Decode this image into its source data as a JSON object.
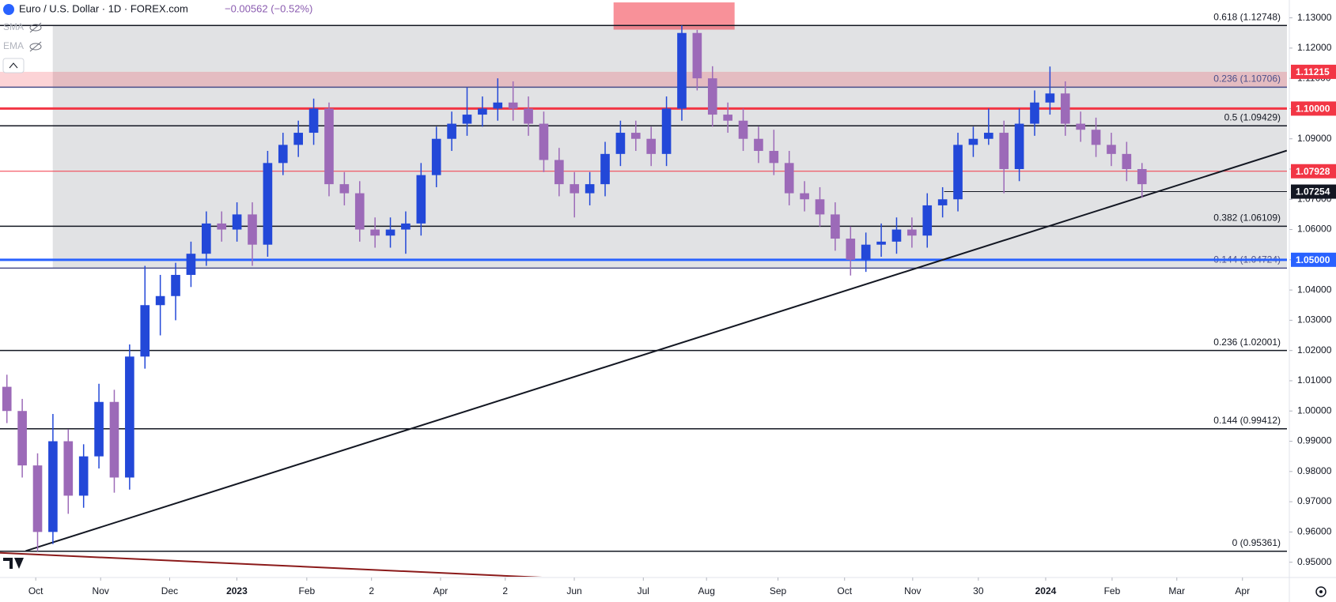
{
  "chart_data": {
    "type": "candlestick",
    "title": "Euro / U.S. Dollar · 1D · FOREX.com",
    "subtitle": "−0.00562 (−0.52%)",
    "indicators": [
      "SMA",
      "EMA"
    ],
    "up_color": "#2348d8",
    "down_color": "#9c6ab8",
    "x": [
      0,
      1,
      2,
      3,
      4,
      5,
      6,
      7,
      8,
      9,
      10,
      11,
      12,
      13,
      14,
      15,
      16,
      17,
      18,
      19,
      20,
      21,
      22,
      23,
      24,
      25,
      26,
      27,
      28,
      29,
      30,
      31,
      32,
      33,
      34,
      35,
      36,
      37,
      38,
      39,
      40,
      41,
      42,
      43,
      44,
      45,
      46,
      47,
      48,
      49,
      50,
      51,
      52,
      53,
      54,
      55,
      56,
      57,
      58,
      59,
      60,
      61,
      62,
      63,
      64,
      65,
      66,
      67,
      68,
      69,
      70,
      71,
      72,
      73,
      74
    ],
    "open": [
      1.008,
      1.0,
      0.982,
      0.96,
      0.99,
      0.972,
      0.985,
      1.003,
      0.978,
      1.018,
      1.035,
      1.038,
      1.045,
      1.052,
      1.062,
      1.06,
      1.065,
      1.055,
      1.082,
      1.088,
      1.092,
      1.1,
      1.075,
      1.072,
      1.06,
      1.058,
      1.06,
      1.062,
      1.078,
      1.09,
      1.095,
      1.098,
      1.1,
      1.102,
      1.1,
      1.095,
      1.083,
      1.075,
      1.072,
      1.075,
      1.085,
      1.092,
      1.09,
      1.085,
      1.1,
      1.125,
      1.11,
      1.098,
      1.096,
      1.09,
      1.086,
      1.082,
      1.072,
      1.07,
      1.065,
      1.057,
      1.05,
      1.055,
      1.056,
      1.06,
      1.058,
      1.068,
      1.07,
      1.088,
      1.09,
      1.092,
      1.08,
      1.095,
      1.102,
      1.105,
      1.095,
      1.093,
      1.088,
      1.085,
      1.08
    ],
    "high": [
      1.012,
      1.004,
      0.986,
      0.999,
      0.994,
      0.989,
      1.009,
      1.007,
      1.022,
      1.048,
      1.045,
      1.049,
      1.056,
      1.066,
      1.066,
      1.069,
      1.069,
      1.086,
      1.092,
      1.096,
      1.1033,
      1.102,
      1.079,
      1.076,
      1.064,
      1.064,
      1.066,
      1.082,
      1.094,
      1.099,
      1.107,
      1.104,
      1.11,
      1.109,
      1.104,
      1.099,
      1.087,
      1.079,
      1.079,
      1.089,
      1.096,
      1.096,
      1.094,
      1.104,
      1.1275,
      1.126,
      1.114,
      1.102,
      1.1,
      1.094,
      1.093,
      1.086,
      1.076,
      1.074,
      1.069,
      1.061,
      1.059,
      1.062,
      1.064,
      1.064,
      1.072,
      1.074,
      1.092,
      1.094,
      1.1,
      1.096,
      1.1,
      1.106,
      1.1139,
      1.109,
      1.099,
      1.097,
      1.092,
      1.089,
      1.082
    ],
    "low": [
      0.996,
      0.978,
      0.9536,
      0.956,
      0.966,
      0.968,
      0.981,
      0.973,
      0.974,
      1.014,
      1.025,
      1.03,
      1.041,
      1.048,
      1.056,
      1.056,
      1.048,
      1.051,
      1.078,
      1.084,
      1.088,
      1.071,
      1.068,
      1.056,
      1.054,
      1.054,
      1.052,
      1.058,
      1.074,
      1.086,
      1.091,
      1.094,
      1.096,
      1.096,
      1.091,
      1.079,
      1.071,
      1.064,
      1.068,
      1.071,
      1.081,
      1.086,
      1.081,
      1.081,
      1.096,
      1.106,
      1.094,
      1.092,
      1.086,
      1.082,
      1.078,
      1.068,
      1.066,
      1.061,
      1.053,
      1.0448,
      1.046,
      1.051,
      1.052,
      1.054,
      1.054,
      1.064,
      1.066,
      1.084,
      1.088,
      1.072,
      1.076,
      1.091,
      1.098,
      1.091,
      1.089,
      1.084,
      1.081,
      1.076,
      1.0705
    ],
    "close": [
      1.0,
      0.982,
      0.96,
      0.99,
      0.972,
      0.985,
      1.003,
      0.978,
      1.018,
      1.035,
      1.038,
      1.045,
      1.052,
      1.062,
      1.06,
      1.065,
      1.055,
      1.082,
      1.088,
      1.092,
      1.1,
      1.075,
      1.072,
      1.06,
      1.058,
      1.06,
      1.062,
      1.078,
      1.09,
      1.095,
      1.098,
      1.1,
      1.102,
      1.1,
      1.095,
      1.083,
      1.075,
      1.072,
      1.075,
      1.085,
      1.092,
      1.09,
      1.085,
      1.1,
      1.125,
      1.11,
      1.098,
      1.096,
      1.09,
      1.086,
      1.082,
      1.072,
      1.07,
      1.065,
      1.057,
      1.05,
      1.055,
      1.056,
      1.06,
      1.058,
      1.068,
      1.07,
      1.088,
      1.09,
      1.092,
      1.08,
      1.095,
      1.102,
      1.105,
      1.095,
      1.093,
      1.088,
      1.085,
      1.08,
      1.075
    ],
    "xlim": [
      -0.45,
      83.45
    ],
    "xticks": [
      {
        "value": 1.88,
        "label": "Oct"
      },
      {
        "value": 6.11,
        "label": "Nov"
      },
      {
        "value": 10.61,
        "label": "Dec"
      },
      {
        "value": 14.99,
        "label": "2023"
      },
      {
        "value": 19.55,
        "label": "Feb"
      },
      {
        "value": 23.77,
        "label": "2"
      },
      {
        "value": 28.27,
        "label": "Apr"
      },
      {
        "value": 32.49,
        "label": "2"
      },
      {
        "value": 36.99,
        "label": "Jun"
      },
      {
        "value": 41.49,
        "label": "Jul"
      },
      {
        "value": 45.61,
        "label": "Aug"
      },
      {
        "value": 50.27,
        "label": "Sep"
      },
      {
        "value": 54.61,
        "label": "Oct"
      },
      {
        "value": 59.05,
        "label": "Nov"
      },
      {
        "value": 63.33,
        "label": "30"
      },
      {
        "value": 67.72,
        "label": "2024"
      },
      {
        "value": 72.05,
        "label": "Feb"
      },
      {
        "value": 76.27,
        "label": "Mar"
      },
      {
        "value": 80.55,
        "label": "Apr"
      }
    ],
    "ylim": [
      0.9452,
      1.1359
    ],
    "yticks": [
      {
        "value": 0.95,
        "label": "0.95000"
      },
      {
        "value": 0.96,
        "label": "0.96000"
      },
      {
        "value": 0.97,
        "label": "0.97000"
      },
      {
        "value": 0.98,
        "label": "0.98000"
      },
      {
        "value": 0.99,
        "label": "0.99000"
      },
      {
        "value": 1.0,
        "label": "1.00000"
      },
      {
        "value": 1.01,
        "label": "1.01000"
      },
      {
        "value": 1.02,
        "label": "1.02000"
      },
      {
        "value": 1.03,
        "label": "1.03000"
      },
      {
        "value": 1.04,
        "label": "1.04000"
      },
      {
        "value": 1.05,
        "label": "1.05000"
      },
      {
        "value": 1.06,
        "label": "1.06000"
      },
      {
        "value": 1.07,
        "label": "1.07000"
      },
      {
        "value": 1.08,
        "label": "1.08000"
      },
      {
        "value": 1.09,
        "label": "1.09000"
      },
      {
        "value": 1.1,
        "label": "1.10000"
      },
      {
        "value": 1.11,
        "label": "1.11000"
      },
      {
        "value": 1.12,
        "label": "1.12000"
      },
      {
        "value": 1.13,
        "label": "1.13000"
      }
    ],
    "zones": [
      {
        "x": [
          2.99,
          83.45
        ],
        "y": [
          1.04724,
          1.12748
        ],
        "color": "rgba(120,123,134,0.22)"
      },
      {
        "x": [
          -0.45,
          83.45
        ],
        "y": [
          1.10706,
          1.11215
        ],
        "color": "rgba(242,54,69,0.22)"
      },
      {
        "x": [
          39.55,
          47.44
        ],
        "y": [
          1.1261,
          1.1351
        ],
        "color": "rgba(242,54,69,0.55)"
      }
    ],
    "levels": [
      {
        "value": 1.12748,
        "label": "0.618 (1.12748)",
        "color": "#131722"
      },
      {
        "value": 1.10706,
        "label": "0.236 (1.10706)",
        "color": "#4a4f8a"
      },
      {
        "value": 1.09429,
        "label": "0.5 (1.09429)",
        "color": "#131722"
      },
      {
        "value": 1.06109,
        "label": "0.382 (1.06109)",
        "color": "#131722"
      },
      {
        "value": 1.04724,
        "label": "0.144 (1.04724)",
        "color": "#4a4f8a"
      },
      {
        "value": 1.02001,
        "label": "0.236 (1.02001)",
        "color": "#131722"
      },
      {
        "value": 0.99412,
        "label": "0.144 (0.99412)",
        "color": "#131722"
      },
      {
        "value": 0.95361,
        "label": "0 (0.95361)",
        "color": "#131722"
      }
    ],
    "price_labels": [
      {
        "value": 1.11215,
        "label": "1.11215",
        "color": "#f23645"
      },
      {
        "value": 1.1,
        "label": "1.10000",
        "color": "#f23645",
        "line_width": 3
      },
      {
        "value": 1.07928,
        "label": "1.07928",
        "color": "#f23645",
        "line_width": 1
      },
      {
        "value": 1.07254,
        "label": "1.07254",
        "color": "#131722",
        "line_width": 1,
        "line_from": 61.1
      },
      {
        "value": 1.05,
        "label": "1.05000",
        "color": "#2962ff",
        "line_width": 3
      }
    ],
    "trendlines": [
      {
        "x": [
          1.22,
          83.44
        ],
        "y": [
          0.9537,
          1.0861
        ],
        "color": "#131722"
      },
      {
        "x": [
          -0.45,
          39.83
        ],
        "y": [
          0.9531,
          0.9438
        ],
        "color": "#8b1a1a"
      }
    ]
  }
}
